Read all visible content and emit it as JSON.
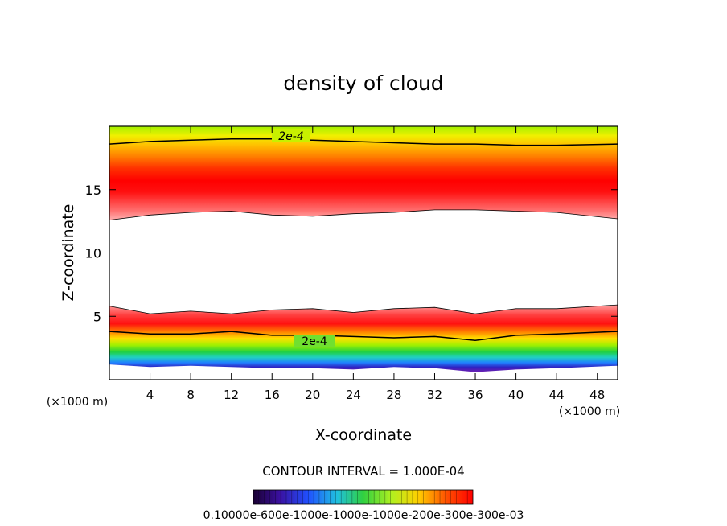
{
  "chart_data": {
    "type": "heatmap",
    "title": "density of cloud",
    "xlabel": "X-coordinate",
    "ylabel": "Z-coordinate",
    "x_unit": "(×1000 m)",
    "z_unit": "(×1000 m)",
    "xlim": [
      0,
      50
    ],
    "ylim": [
      0,
      20
    ],
    "xticks": [
      4,
      8,
      12,
      16,
      20,
      24,
      28,
      32,
      36,
      40,
      44,
      48
    ],
    "yticks": [
      5,
      10,
      15
    ],
    "contour_interval_text": "CONTOUR INTERVAL = 1.000E-04",
    "colorbar_text": "0.10000e-600e-1000e-1000e-1000e-200e-300e-300e-03",
    "contour_labels": [
      "2e-4",
      "2e-4"
    ],
    "colorbar_range": [
      0.0001,
      0.0003
    ],
    "upper_band": {
      "bottom_km": [
        12.6,
        13.0,
        13.2,
        13.3,
        13.0,
        12.9,
        13.1,
        13.2,
        13.4,
        13.4,
        13.3,
        13.2,
        12.7
      ],
      "peak_km": 15.0,
      "top_contour_2e4_km": [
        18.6,
        18.8,
        18.9,
        19.0,
        19.0,
        18.9,
        18.8,
        18.7,
        18.6,
        18.6,
        18.5,
        18.5,
        18.6
      ]
    },
    "lower_band": {
      "top_km": [
        5.8,
        5.2,
        5.4,
        5.2,
        5.5,
        5.6,
        5.3,
        5.6,
        5.7,
        5.2,
        5.6,
        5.6,
        5.9
      ],
      "contour_2e4_km": [
        3.8,
        3.6,
        3.6,
        3.8,
        3.5,
        3.5,
        3.4,
        3.3,
        3.4,
        3.1,
        3.5,
        3.6,
        3.8
      ],
      "bottom_km": [
        1.2,
        1.0,
        1.1,
        1.0,
        0.9,
        0.9,
        0.8,
        1.0,
        0.9,
        0.6,
        0.8,
        0.9,
        1.1
      ]
    },
    "x_profile_km": [
      0,
      4,
      8,
      12,
      16,
      20,
      24,
      28,
      32,
      36,
      40,
      44,
      50
    ]
  }
}
